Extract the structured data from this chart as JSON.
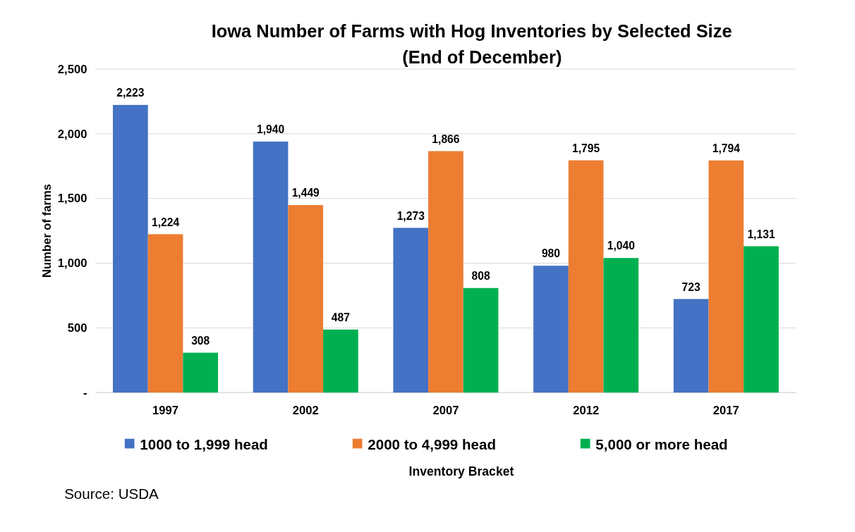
{
  "chart_data": {
    "type": "bar",
    "title": "Iowa Number of Farms with Hog Inventories by Selected Size",
    "subtitle": "(End of December)",
    "xlabel": "Inventory Bracket",
    "ylabel": "Number of farms",
    "categories": [
      "1997",
      "2002",
      "2007",
      "2012",
      "2017"
    ],
    "series": [
      {
        "name": "1000 to 1,999 head",
        "color": "#4472c4",
        "values": [
          2223,
          1940,
          1273,
          980,
          723
        ],
        "value_labels": [
          "2,223",
          "1,940",
          "1,273",
          "980",
          "723"
        ]
      },
      {
        "name": "2000 to 4,999 head",
        "color": "#ed7d31",
        "values": [
          1224,
          1449,
          1866,
          1795,
          1794
        ],
        "value_labels": [
          "1,224",
          "1,449",
          "1,866",
          "1,795",
          "1,794"
        ]
      },
      {
        "name": "5,000 or more head",
        "color": "#00b050",
        "values": [
          308,
          487,
          808,
          1040,
          1131
        ],
        "value_labels": [
          "308",
          "487",
          "808",
          "1,040",
          "1,131"
        ]
      }
    ],
    "ylim": [
      0,
      2500
    ],
    "yticks": [
      {
        "value": 0,
        "label": "-"
      },
      {
        "value": 500,
        "label": "500"
      },
      {
        "value": 1000,
        "label": "1,000"
      },
      {
        "value": 1500,
        "label": "1,500"
      },
      {
        "value": 2000,
        "label": "2,000"
      },
      {
        "value": 2500,
        "label": "2,500"
      }
    ],
    "grid": "y",
    "legend": "bottom",
    "annotations": [
      "Source: USDA"
    ]
  }
}
